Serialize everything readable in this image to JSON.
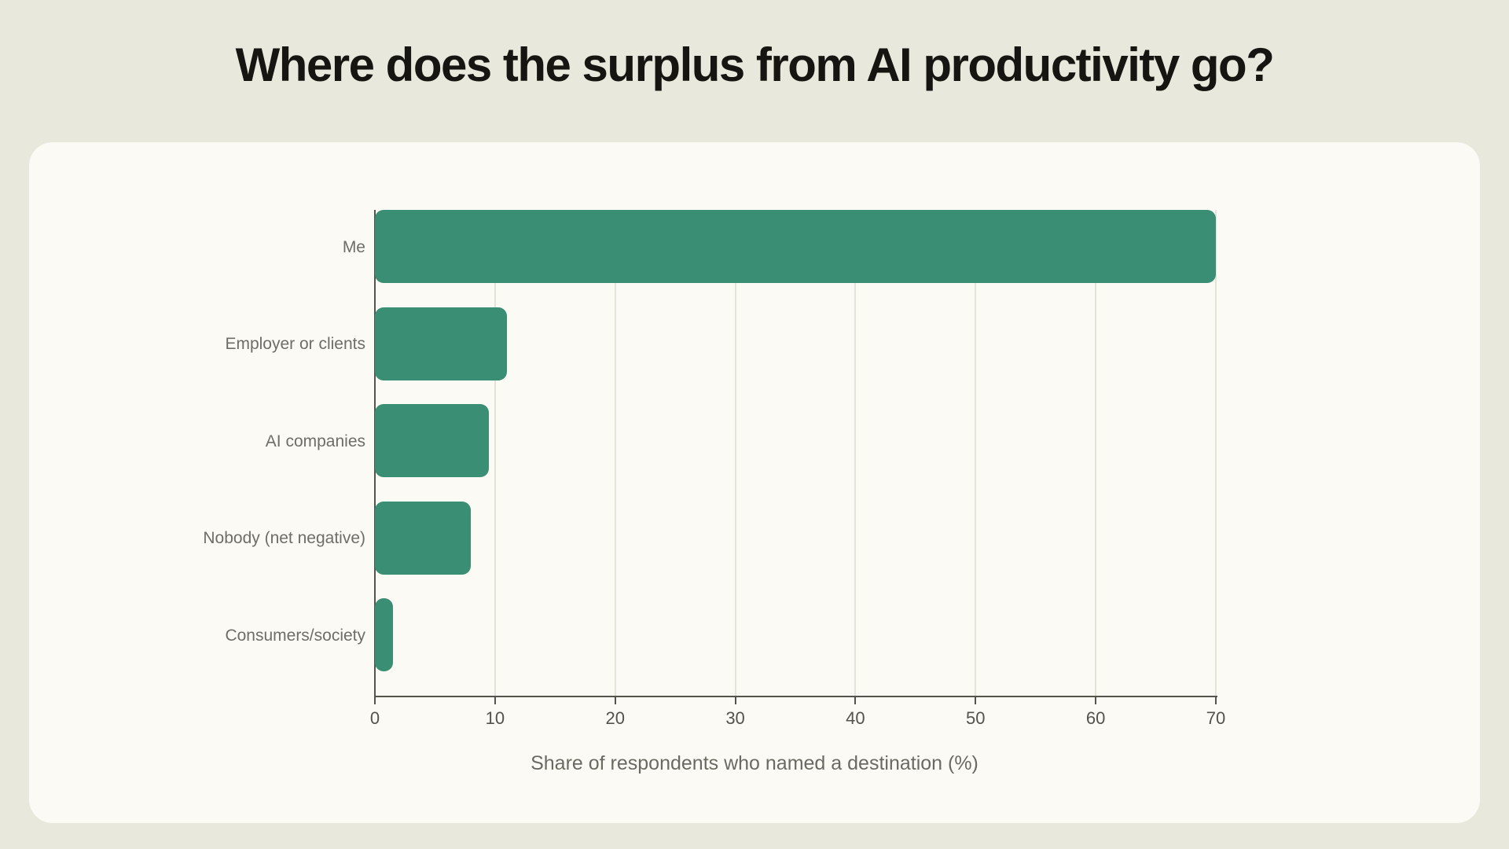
{
  "title": "Where does the surplus from AI productivity go?",
  "chart_data": {
    "type": "bar",
    "orientation": "horizontal",
    "title": "Where does the surplus from AI productivity go?",
    "categories": [
      "Me",
      "Employer or clients",
      "AI companies",
      "Nobody (net negative)",
      "Consumers/society"
    ],
    "values": [
      70,
      11,
      9.5,
      8,
      1.5
    ],
    "xlabel": "Share of respondents who named a destination (%)",
    "ylabel": "",
    "xlim": [
      0,
      70
    ],
    "xticks": [
      0,
      10,
      20,
      30,
      40,
      50,
      60,
      70
    ],
    "grid": true,
    "legend": false,
    "bar_color": "#398e74"
  },
  "colors": {
    "page_background": "#e8e8dc",
    "card_background": "#fbfaf4",
    "bar": "#398e74",
    "title_text": "#161511",
    "label_text": "#6e6d66",
    "tick_text": "#53524b",
    "axis": "#55544c",
    "gridline": "#e4e3d8"
  }
}
